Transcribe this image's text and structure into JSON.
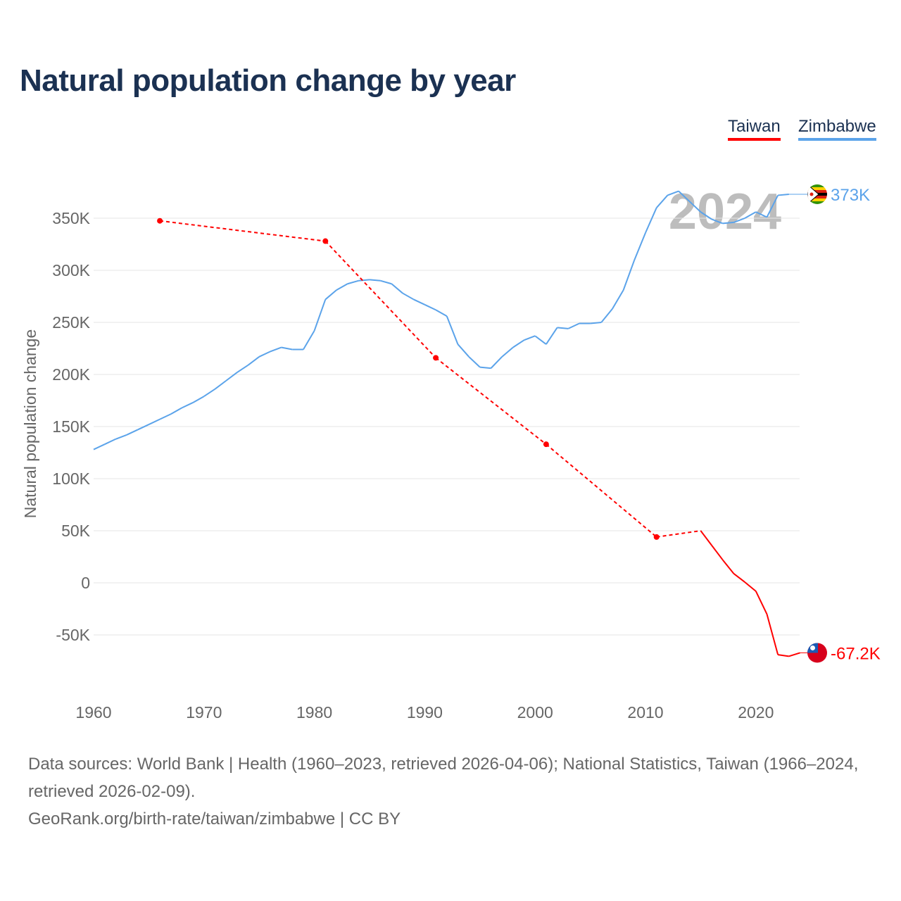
{
  "title": "Natural population change by year",
  "legend": [
    {
      "label": "Taiwan",
      "color": "#ff0000"
    },
    {
      "label": "Zimbabwe",
      "color": "#5ba3ea"
    }
  ],
  "footer": {
    "sources": "Data sources: World Bank | Health (1960–2023, retrieved 2026-04-06); National Statistics, Taiwan (1966–2024, retrieved 2026-02-09).",
    "link": "GeoRank.org/birth-rate/taiwan/zimbabwe | CC BY"
  },
  "chart_data": {
    "type": "line",
    "title": "Natural population change by year",
    "xlabel": "",
    "ylabel": "Natural population change",
    "year_watermark": "2024",
    "xlim": [
      1960,
      2024
    ],
    "ylim": [
      -100000,
      380000
    ],
    "x_ticks": [
      {
        "v": 1960,
        "label": "1960"
      },
      {
        "v": 1970,
        "label": "1970"
      },
      {
        "v": 1980,
        "label": "1980"
      },
      {
        "v": 1990,
        "label": "1990"
      },
      {
        "v": 2000,
        "label": "2000"
      },
      {
        "v": 2010,
        "label": "2010"
      },
      {
        "v": 2020,
        "label": "2020"
      }
    ],
    "y_ticks": [
      {
        "v": -50000,
        "label": "-50K"
      },
      {
        "v": 0,
        "label": "0"
      },
      {
        "v": 50000,
        "label": "50K"
      },
      {
        "v": 100000,
        "label": "100K"
      },
      {
        "v": 150000,
        "label": "150K"
      },
      {
        "v": 200000,
        "label": "200K"
      },
      {
        "v": 250000,
        "label": "250K"
      },
      {
        "v": 300000,
        "label": "300K"
      },
      {
        "v": 350000,
        "label": "350K"
      }
    ],
    "grid": true,
    "legend_position": "top-right",
    "series": [
      {
        "name": "Zimbabwe",
        "color": "#5ba3ea",
        "end_label": "373K",
        "flag": "zimbabwe",
        "x": [
          1960,
          1961,
          1962,
          1963,
          1964,
          1965,
          1966,
          1967,
          1968,
          1969,
          1970,
          1971,
          1972,
          1973,
          1974,
          1975,
          1976,
          1977,
          1978,
          1979,
          1980,
          1981,
          1982,
          1983,
          1984,
          1985,
          1986,
          1987,
          1988,
          1989,
          1990,
          1991,
          1992,
          1993,
          1994,
          1995,
          1996,
          1997,
          1998,
          1999,
          2000,
          2001,
          2002,
          2003,
          2004,
          2005,
          2006,
          2007,
          2008,
          2009,
          2010,
          2011,
          2012,
          2013,
          2014,
          2015,
          2016,
          2017,
          2018,
          2019,
          2020,
          2021,
          2022,
          2023
        ],
        "y": [
          128000,
          133000,
          138000,
          142000,
          147000,
          152000,
          157000,
          162000,
          168000,
          173000,
          179000,
          186000,
          194000,
          202000,
          209000,
          217000,
          222000,
          226000,
          224000,
          224000,
          242000,
          272000,
          281000,
          287000,
          290000,
          291000,
          290000,
          287000,
          278000,
          272000,
          267000,
          262000,
          256000,
          229000,
          217000,
          207000,
          206000,
          217000,
          226000,
          233000,
          237000,
          229000,
          245000,
          244000,
          249000,
          249000,
          250000,
          263000,
          281000,
          310000,
          336000,
          360000,
          372000,
          376000,
          366000,
          356000,
          349000,
          345000,
          346000,
          350000,
          356000,
          351000,
          372000,
          373000
        ]
      },
      {
        "name": "Taiwan",
        "color": "#ff0000",
        "end_label": "-67.2K",
        "flag": "taiwan",
        "x": [
          1966,
          1981,
          1991,
          2001,
          2011,
          2015,
          2016,
          2017,
          2018,
          2019,
          2020,
          2021,
          2022,
          2023,
          2024
        ],
        "y": [
          347500,
          328000,
          216000,
          133000,
          44000,
          50000,
          36000,
          22000,
          8800,
          700,
          -8000,
          -30000,
          -69000,
          -70500,
          -67200
        ]
      }
    ]
  }
}
